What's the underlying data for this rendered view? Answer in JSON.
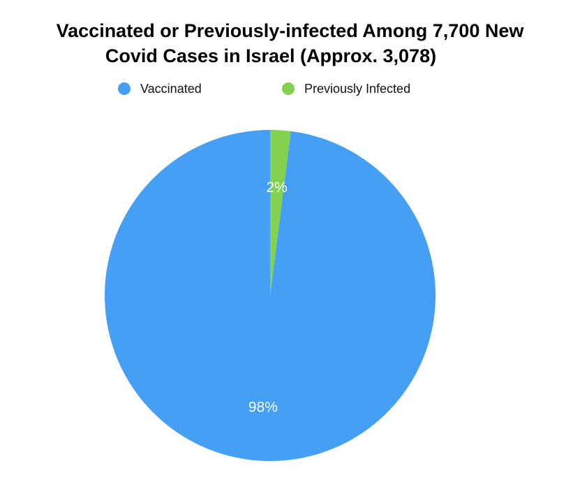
{
  "title_lines": [
    "Vaccinated or Previously-infected Among 7,700 New",
    "Covid Cases in Israel (Approx. 3,078)"
  ],
  "legend": [
    {
      "label": "Vaccinated",
      "color": "#45a0f5"
    },
    {
      "label": "Previously Infected",
      "color": "#82d14f"
    }
  ],
  "chart_data": {
    "type": "pie",
    "title": "Vaccinated or Previously-infected Among 7,700 New Covid Cases in Israel (Approx. 3,078)",
    "legend_position": "top",
    "slices": [
      {
        "label": "Vaccinated",
        "value": 98,
        "display": "98%",
        "color": "#45a0f5"
      },
      {
        "label": "Previously Infected",
        "value": 2,
        "display": "2%",
        "color": "#82d14f"
      }
    ]
  }
}
